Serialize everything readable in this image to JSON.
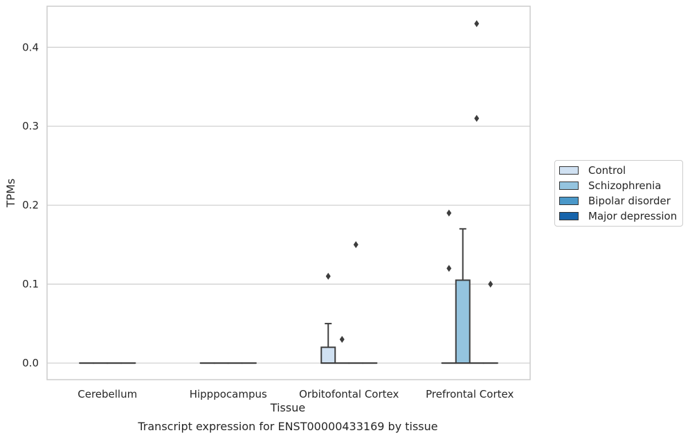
{
  "chart_data": {
    "type": "box",
    "title": "Transcript expression for ENST00000433169 by tissue",
    "xlabel": "Tissue",
    "ylabel": "TPMs",
    "ylim": [
      -0.021,
      0.452
    ],
    "yticks": [
      "0.0",
      "0.1",
      "0.2",
      "0.3",
      "0.4"
    ],
    "grid": true,
    "legend_position": "right",
    "categories": [
      "Cerebellum",
      "Hipppocampus",
      "Orbitofontal Cortex",
      "Prefrontal Cortex"
    ],
    "series": [
      {
        "name": "Control",
        "color": "#d0e1f2",
        "boxes": [
          {
            "q1": 0,
            "median": 0,
            "q3": 0,
            "whisker_low": 0,
            "whisker_high": 0,
            "outliers": []
          },
          {
            "q1": 0,
            "median": 0,
            "q3": 0,
            "whisker_low": 0,
            "whisker_high": 0,
            "outliers": []
          },
          {
            "q1": 0,
            "median": 0,
            "q3": 0.02,
            "whisker_low": 0,
            "whisker_high": 0.05,
            "outliers": [
              0.11
            ]
          },
          {
            "q1": 0,
            "median": 0,
            "q3": 0,
            "whisker_low": 0,
            "whisker_high": 0,
            "outliers": [
              0.12,
              0.19
            ]
          }
        ]
      },
      {
        "name": "Schizophrenia",
        "color": "#94c4df",
        "boxes": [
          {
            "q1": 0,
            "median": 0,
            "q3": 0,
            "whisker_low": 0,
            "whisker_high": 0,
            "outliers": []
          },
          {
            "q1": 0,
            "median": 0,
            "q3": 0,
            "whisker_low": 0,
            "whisker_high": 0,
            "outliers": []
          },
          {
            "q1": 0,
            "median": 0,
            "q3": 0,
            "whisker_low": 0,
            "whisker_high": 0,
            "outliers": [
              0.03
            ]
          },
          {
            "q1": 0,
            "median": 0,
            "q3": 0.105,
            "whisker_low": 0,
            "whisker_high": 0.17,
            "outliers": []
          }
        ]
      },
      {
        "name": "Bipolar disorder",
        "color": "#4a98c9",
        "boxes": [
          {
            "q1": 0,
            "median": 0,
            "q3": 0,
            "whisker_low": 0,
            "whisker_high": 0,
            "outliers": []
          },
          {
            "q1": 0,
            "median": 0,
            "q3": 0,
            "whisker_low": 0,
            "whisker_high": 0,
            "outliers": []
          },
          {
            "q1": 0,
            "median": 0,
            "q3": 0,
            "whisker_low": 0,
            "whisker_high": 0,
            "outliers": [
              0.15
            ]
          },
          {
            "q1": 0,
            "median": 0,
            "q3": 0,
            "whisker_low": 0,
            "whisker_high": 0,
            "outliers": [
              0.31,
              0.43
            ]
          }
        ]
      },
      {
        "name": "Major depression",
        "color": "#1764ab",
        "boxes": [
          {
            "q1": 0,
            "median": 0,
            "q3": 0,
            "whisker_low": 0,
            "whisker_high": 0,
            "outliers": []
          },
          {
            "q1": 0,
            "median": 0,
            "q3": 0,
            "whisker_low": 0,
            "whisker_high": 0,
            "outliers": []
          },
          {
            "q1": 0,
            "median": 0,
            "q3": 0,
            "whisker_low": 0,
            "whisker_high": 0,
            "outliers": []
          },
          {
            "q1": 0,
            "median": 0,
            "q3": 0,
            "whisker_low": 0,
            "whisker_high": 0,
            "outliers": [
              0.1
            ]
          }
        ]
      }
    ]
  }
}
